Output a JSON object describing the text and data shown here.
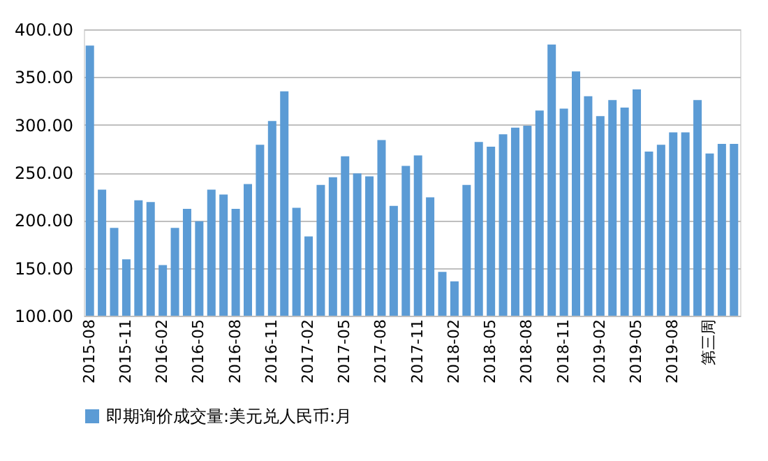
{
  "chart_data": {
    "type": "bar",
    "categories": [
      "2015-08",
      null,
      null,
      "2015-11",
      null,
      null,
      "2016-02",
      null,
      null,
      "2016-05",
      null,
      null,
      "2016-08",
      null,
      null,
      "2016-11",
      null,
      null,
      "2017-02",
      null,
      null,
      "2017-05",
      null,
      null,
      "2017-08",
      null,
      null,
      "2017-11",
      null,
      null,
      "2018-02",
      null,
      null,
      "2018-05",
      null,
      null,
      "2018-08",
      null,
      null,
      "2018-11",
      null,
      null,
      "2019-02",
      null,
      null,
      "2019-05",
      null,
      null,
      "2019-08",
      null,
      null,
      "第三周",
      null,
      null
    ],
    "series": [
      {
        "name": "即期询价成交量:美元兑人民币:月",
        "color": "#5b9bd5",
        "values": [
          383,
          232,
          192,
          159,
          221,
          219,
          153,
          192,
          212,
          199,
          232,
          227,
          212,
          238,
          279,
          304,
          335,
          213,
          183,
          237,
          245,
          267,
          249,
          246,
          284,
          215,
          257,
          268,
          224,
          146,
          136,
          237,
          282,
          277,
          290,
          297,
          299,
          315,
          384,
          317,
          356,
          330,
          309,
          326,
          318,
          337,
          272,
          279,
          292,
          292,
          326,
          270,
          280,
          280
        ]
      }
    ],
    "ylim": [
      100,
      400
    ],
    "yticks": [
      {
        "value": 100,
        "label": "100.00"
      },
      {
        "value": 150,
        "label": "150.00"
      },
      {
        "value": 200,
        "label": "200.00"
      },
      {
        "value": 250,
        "label": "250.00"
      },
      {
        "value": 300,
        "label": "300.00"
      },
      {
        "value": 350,
        "label": "350.00"
      },
      {
        "value": 400,
        "label": "400.00"
      }
    ],
    "grid": "y",
    "legend": "bottom"
  }
}
